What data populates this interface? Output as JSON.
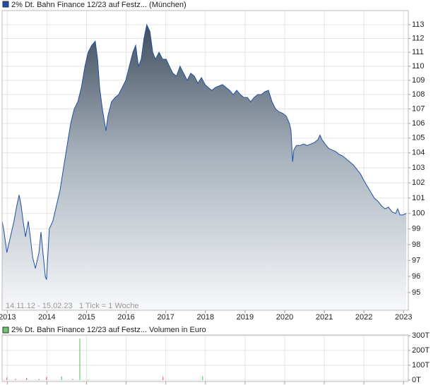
{
  "chart_data": [
    {
      "type": "area",
      "title": "2% Dt. Bahn Finance 12/23 auf Festz... (München)",
      "annotations": [
        "14.11.12 - 15.02.23",
        "1 Tick = 1 Woche"
      ],
      "color": "#1f4fa8",
      "log_scale": true,
      "grid": true,
      "xlim": [
        2012.87,
        2023.12
      ],
      "xticks": [
        2013,
        2014,
        2015,
        2016,
        2017,
        2018,
        2019,
        2020,
        2021,
        2022,
        2023
      ],
      "ylim": [
        93.92,
        114.04
      ],
      "yticks": [
        95,
        96,
        97,
        98,
        99,
        100,
        101,
        102,
        103,
        104,
        105,
        106,
        107,
        108,
        109,
        110,
        111,
        112,
        113
      ],
      "x": [
        2012.87,
        2012.92,
        2012.99,
        2013.08,
        2013.17,
        2013.24,
        2013.3,
        2013.35,
        2013.4,
        2013.46,
        2013.53,
        2013.58,
        2013.64,
        2013.71,
        2013.8,
        2013.85,
        2013.9,
        2013.96,
        2013.99,
        2014.06,
        2014.15,
        2014.24,
        2014.33,
        2014.42,
        2014.51,
        2014.6,
        2014.69,
        2014.78,
        2014.87,
        2014.96,
        2015.04,
        2015.13,
        2015.22,
        2015.28,
        2015.33,
        2015.4,
        2015.49,
        2015.54,
        2015.63,
        2015.72,
        2015.81,
        2015.9,
        2015.99,
        2016.08,
        2016.17,
        2016.24,
        2016.31,
        2016.38,
        2016.45,
        2016.52,
        2016.6,
        2016.67,
        2016.74,
        2016.83,
        2016.92,
        2017.01,
        2017.09,
        2017.18,
        2017.27,
        2017.36,
        2017.45,
        2017.54,
        2017.63,
        2017.72,
        2017.81,
        2017.9,
        2017.99,
        2018.07,
        2018.16,
        2018.25,
        2018.34,
        2018.43,
        2018.52,
        2018.61,
        2018.7,
        2018.79,
        2018.88,
        2018.97,
        2019.06,
        2019.14,
        2019.23,
        2019.32,
        2019.41,
        2019.5,
        2019.59,
        2019.68,
        2019.77,
        2019.86,
        2019.95,
        2020.04,
        2020.12,
        2020.16,
        2020.2,
        2020.23,
        2020.3,
        2020.39,
        2020.48,
        2020.57,
        2020.66,
        2020.75,
        2020.84,
        2020.89,
        2020.94,
        2021.02,
        2021.11,
        2021.19,
        2021.28,
        2021.37,
        2021.46,
        2021.55,
        2021.64,
        2021.73,
        2021.82,
        2021.91,
        2021.99,
        2022.08,
        2022.17,
        2022.26,
        2022.35,
        2022.44,
        2022.53,
        2022.62,
        2022.71,
        2022.8,
        2022.85,
        2022.91,
        2022.98,
        2023.07
      ],
      "values": [
        99.5,
        98.8,
        97.5,
        98.5,
        99.5,
        100.5,
        101.2,
        100.5,
        99.5,
        98.5,
        99.5,
        98.5,
        97.2,
        96.5,
        97.5,
        98.8,
        97.5,
        96.0,
        95.8,
        99,
        99.5,
        100.5,
        101.5,
        103,
        104.5,
        106,
        107,
        107.5,
        108.5,
        110,
        111,
        111.5,
        111.8,
        110.5,
        108.5,
        107,
        105.5,
        106.5,
        107.5,
        107.8,
        108,
        108.5,
        109,
        110,
        111,
        111.5,
        110,
        110.5,
        112,
        113,
        112.5,
        111,
        110.5,
        111,
        110.5,
        110.5,
        110,
        109.5,
        109.3,
        110,
        109.5,
        109,
        109.5,
        109.3,
        108.8,
        109.2,
        108.7,
        108.5,
        108.3,
        108.5,
        108.6,
        108.7,
        108.5,
        108.3,
        108,
        108.3,
        108,
        107.8,
        107.8,
        107.5,
        107.8,
        108,
        108,
        108.2,
        108.3,
        107.5,
        107,
        106.8,
        106.7,
        106.5,
        106,
        105.5,
        103.4,
        104.2,
        104.5,
        104.5,
        104.6,
        104.5,
        104.6,
        104.7,
        104.9,
        105.2,
        104.9,
        104.6,
        104.3,
        104.2,
        104.1,
        103.9,
        103.8,
        103.6,
        103.4,
        103.2,
        102.9,
        102.6,
        102.2,
        101.8,
        101.4,
        101.0,
        100.8,
        100.5,
        100.3,
        100.4,
        100.1,
        100.0,
        100.3,
        99.9,
        99.9,
        100.0
      ]
    },
    {
      "type": "bar",
      "title": "2% Dt. Bahn Finance 12/23 auf Festz... Volumen in Euro",
      "color": "#6cc46c",
      "grid": true,
      "xlim": [
        2012.87,
        2023.12
      ],
      "xticks": [
        2013,
        2014,
        2015,
        2016,
        2017,
        2018,
        2019,
        2020,
        2021,
        2022,
        2023
      ],
      "ylim": [
        -10,
        305
      ],
      "yticks": [
        {
          "value": 0,
          "label": "0T"
        },
        {
          "value": 100,
          "label": "100T"
        },
        {
          "value": 200,
          "label": "200T"
        },
        {
          "value": 300,
          "label": "300T"
        }
      ],
      "x": [
        2012.99,
        2013.21,
        2013.49,
        2013.8,
        2013.99,
        2014.37,
        2014.65,
        2014.83,
        2015.04,
        2016.93,
        2017.93
      ],
      "values": [
        18,
        8,
        14,
        6,
        20,
        25,
        8,
        280,
        4,
        22,
        26
      ],
      "colors": [
        "#e05050",
        "#e05050",
        "#e05050",
        "#e05050",
        "#e05050",
        "#50c050",
        "#50c050",
        "#50c050",
        "#50c050",
        "#e05050",
        "#50c050"
      ]
    }
  ]
}
